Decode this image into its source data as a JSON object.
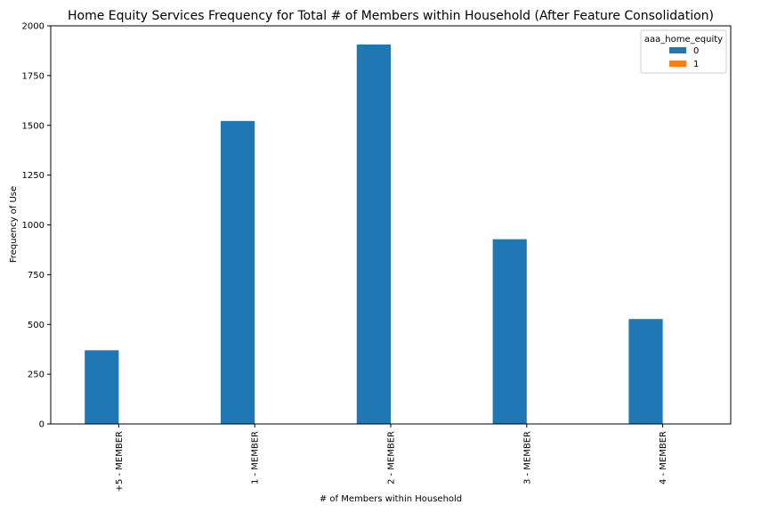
{
  "chart_data": {
    "type": "bar",
    "title": "Home Equity Services Frequency for Total # of Members within Household (After Feature Consolidation)",
    "xlabel": "# of Members within Household",
    "ylabel": "Frequency of Use",
    "categories": [
      "+5 - MEMBER",
      "1 - MEMBER",
      "2 - MEMBER",
      "3 - MEMBER",
      "4 - MEMBER"
    ],
    "series": [
      {
        "name": "0",
        "color": "#1f77b4",
        "values": [
          370,
          1522,
          1906,
          928,
          527
        ]
      },
      {
        "name": "1",
        "color": "#ff7f0e",
        "values": [
          0,
          0,
          0,
          0,
          0
        ]
      }
    ],
    "ylim": [
      0,
      2000
    ],
    "yticks": [
      "0",
      "250",
      "500",
      "750",
      "1000",
      "1250",
      "1500",
      "1750",
      "2000"
    ],
    "legend": {
      "title": "aaa_home_equity",
      "placement": "top-right"
    },
    "grid": false
  }
}
